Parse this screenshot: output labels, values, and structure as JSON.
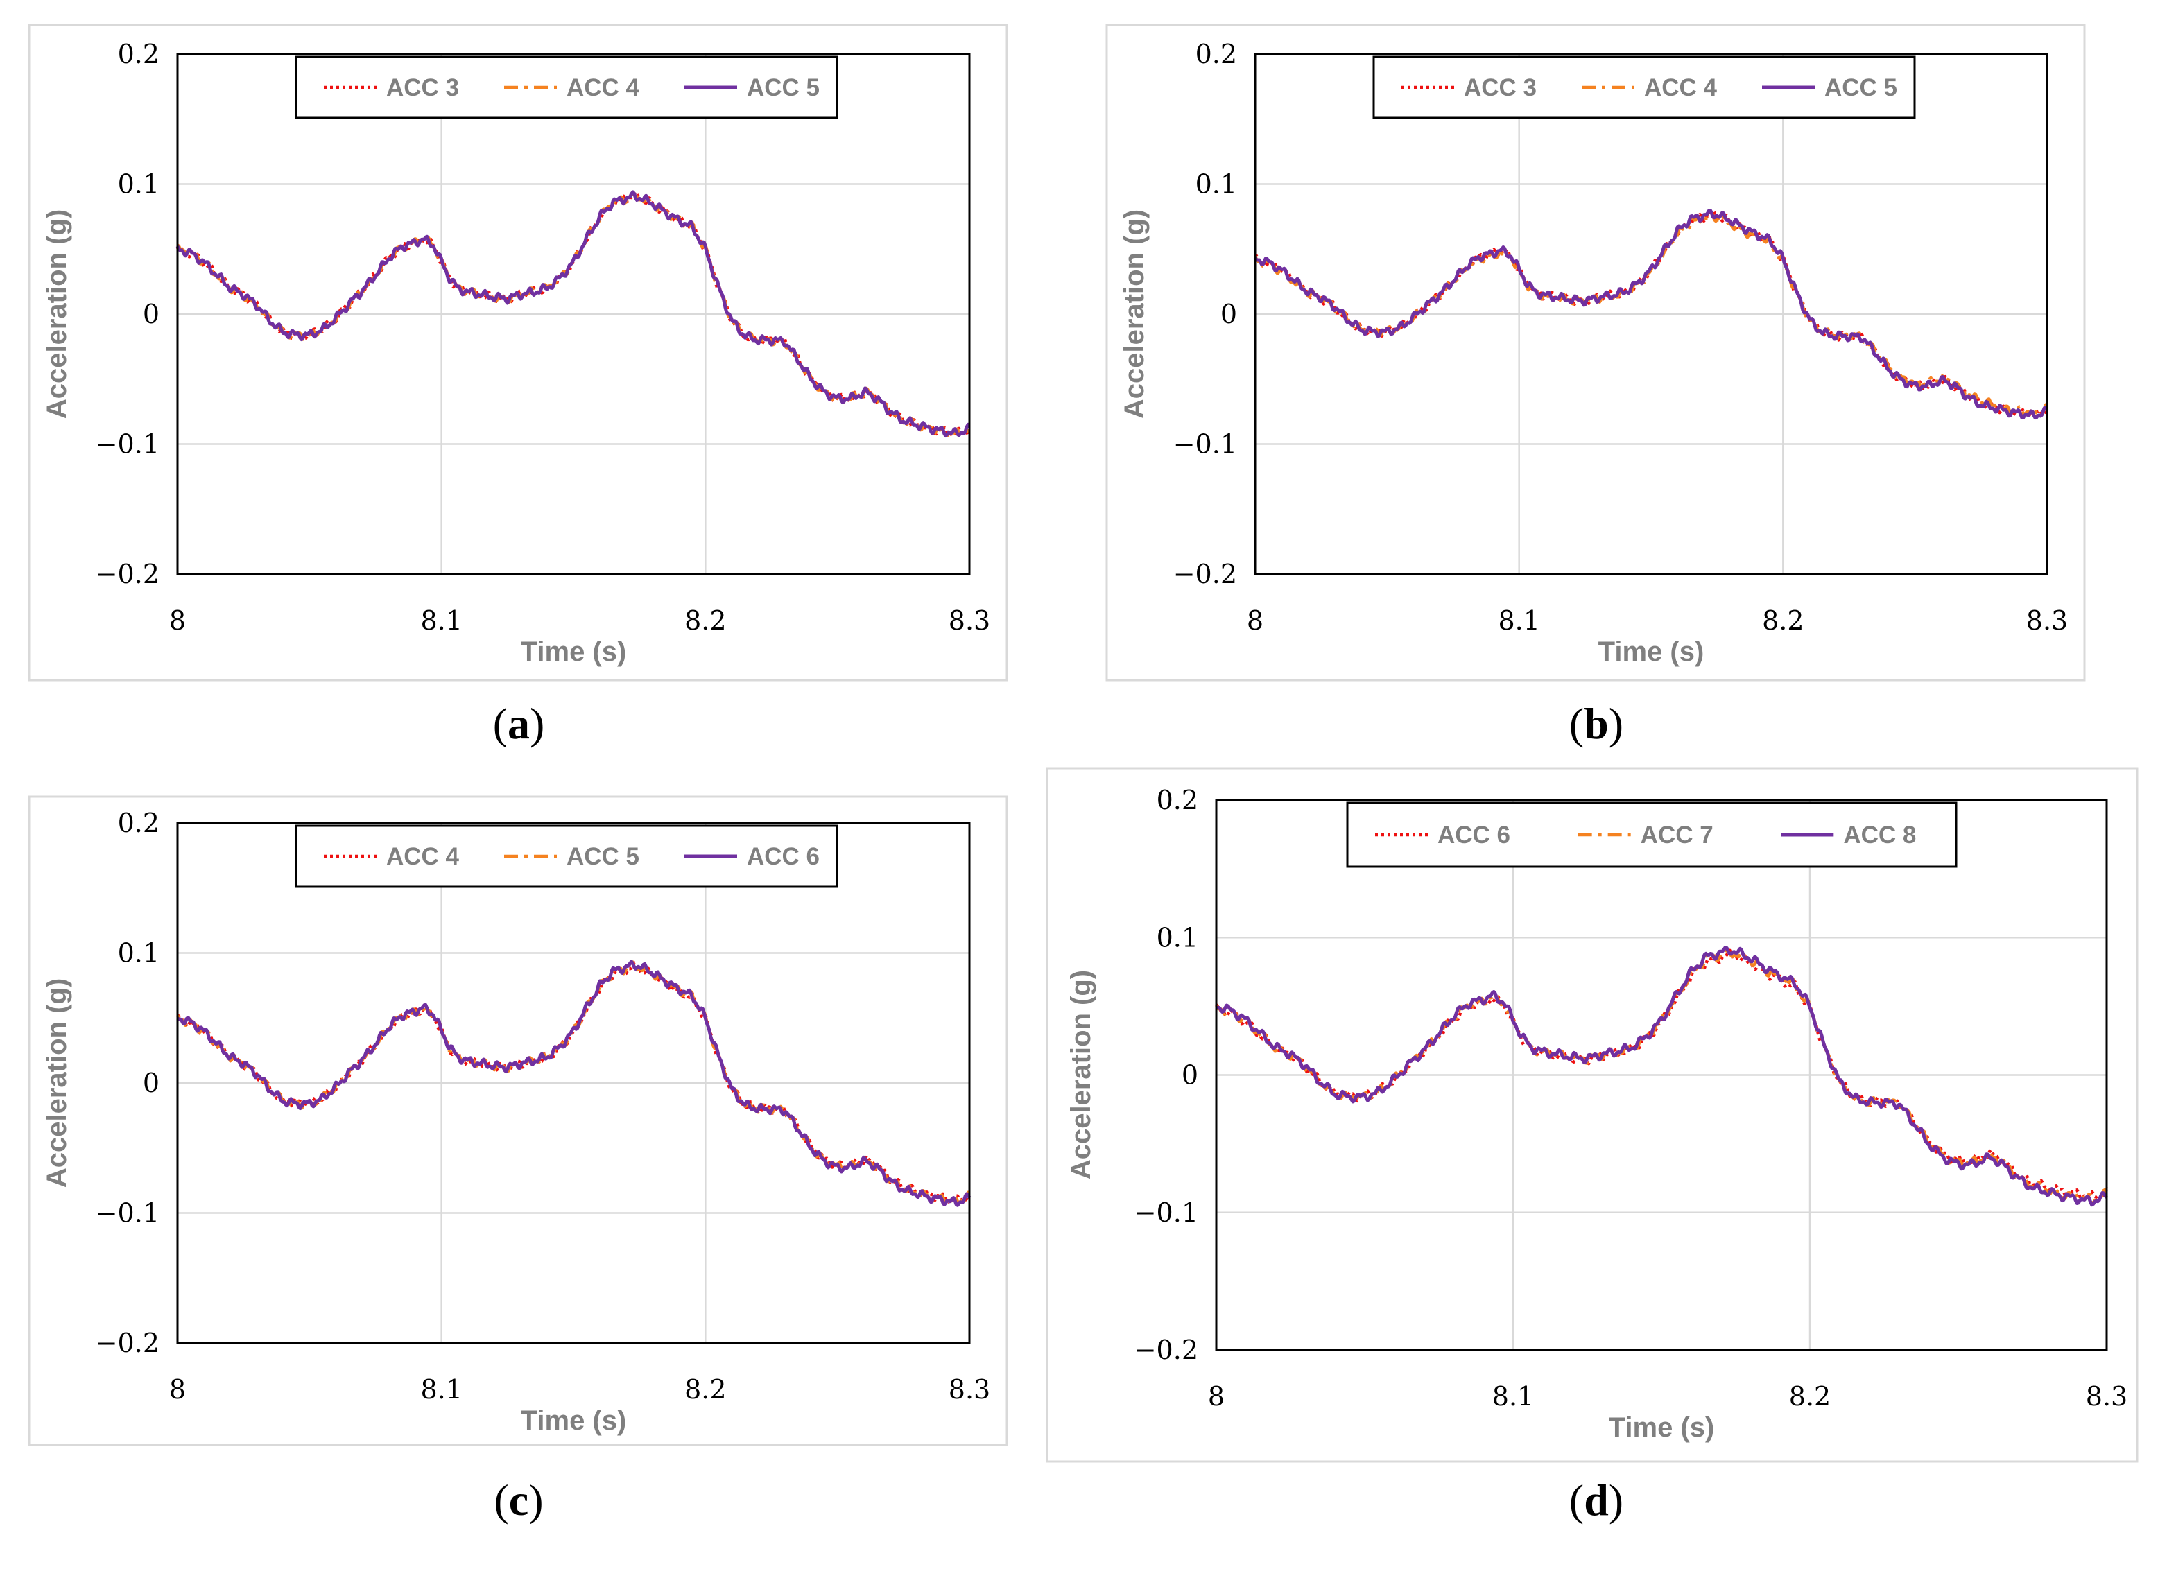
{
  "colors": {
    "series_1": "#ee1111",
    "series_2": "#f58220",
    "series_3": "#7030a0",
    "axis_label": "#7f7f7f",
    "grid": "#d9d9d9"
  },
  "chart_data": [
    {
      "type": "line",
      "caption_prefix": "(",
      "caption_letter": "a",
      "caption_suffix": ")",
      "xlabel": "Time (s)",
      "ylabel": "Acceleration (g)",
      "xlim": [
        8,
        8.3
      ],
      "ylim": [
        -0.2,
        0.2
      ],
      "xticks": [
        "8",
        "8.1",
        "8.2",
        "8.3"
      ],
      "yticks": [
        "0.2",
        "0.1",
        "0",
        "−0.1",
        "−0.2"
      ],
      "series": [
        {
          "name": "ACC 3",
          "style": "dotted",
          "offset": 0.0,
          "scale": 1.0
        },
        {
          "name": "ACC 4",
          "style": "dashdot",
          "offset": 0.0,
          "scale": 1.0
        },
        {
          "name": "ACC 5",
          "style": "solid",
          "offset": 0.0,
          "scale": 1.0
        }
      ]
    },
    {
      "type": "line",
      "caption_prefix": "(",
      "caption_letter": "b",
      "caption_suffix": ")",
      "xlabel": "Time (s)",
      "ylabel": "Acceleration (g)",
      "xlim": [
        8,
        8.3
      ],
      "ylim": [
        -0.2,
        0.2
      ],
      "xticks": [
        "8",
        "8.1",
        "8.2",
        "8.3"
      ],
      "yticks": [
        "0.2",
        "0.1",
        "0",
        "−0.1",
        "−0.2"
      ],
      "series": [
        {
          "name": "ACC 3",
          "style": "dotted",
          "offset": 0.0,
          "scale": 0.84
        },
        {
          "name": "ACC 4",
          "style": "dashdot",
          "offset": 0.0,
          "scale": 0.82
        },
        {
          "name": "ACC 5",
          "style": "solid",
          "offset": 0.0,
          "scale": 0.85
        }
      ]
    },
    {
      "type": "line",
      "caption_prefix": "(",
      "caption_letter": "c",
      "caption_suffix": ")",
      "xlabel": "Time (s)",
      "ylabel": "Acceleration (g)",
      "xlim": [
        8,
        8.3
      ],
      "ylim": [
        -0.2,
        0.2
      ],
      "xticks": [
        "8",
        "8.1",
        "8.2",
        "8.3"
      ],
      "yticks": [
        "0.2",
        "0.1",
        "0",
        "−0.1",
        "−0.2"
      ],
      "series": [
        {
          "name": "ACC 4",
          "style": "dotted",
          "offset": 0.0,
          "scale": 0.98
        },
        {
          "name": "ACC 5",
          "style": "dashdot",
          "offset": 0.0,
          "scale": 0.99
        },
        {
          "name": "ACC 6",
          "style": "solid",
          "offset": 0.0,
          "scale": 1.0
        }
      ]
    },
    {
      "type": "line",
      "caption_prefix": "(",
      "caption_letter": "d",
      "caption_suffix": ")",
      "xlabel": "Time (s)",
      "ylabel": "Acceleration (g)",
      "xlim": [
        8,
        8.3
      ],
      "ylim": [
        -0.2,
        0.2
      ],
      "xticks": [
        "8",
        "8.1",
        "8.2",
        "8.3"
      ],
      "yticks": [
        "0.2",
        "0.1",
        "0",
        "−0.1",
        "−0.2"
      ],
      "series": [
        {
          "name": "ACC 6",
          "style": "dotted",
          "offset": 0.0,
          "scale": 0.96
        },
        {
          "name": "ACC 7",
          "style": "dashdot",
          "offset": 0.0,
          "scale": 0.98
        },
        {
          "name": "ACC 8",
          "style": "solid",
          "offset": 0.0,
          "scale": 1.0
        }
      ]
    }
  ],
  "base_waveform": {
    "t": [
      8.0,
      8.005,
      8.01,
      8.015,
      8.02,
      8.025,
      8.03,
      8.035,
      8.04,
      8.045,
      8.05,
      8.055,
      8.06,
      8.065,
      8.07,
      8.075,
      8.08,
      8.085,
      8.09,
      8.093,
      8.097,
      8.1,
      8.103,
      8.106,
      8.11,
      8.115,
      8.12,
      8.125,
      8.13,
      8.135,
      8.14,
      8.145,
      8.15,
      8.155,
      8.16,
      8.165,
      8.17,
      8.173,
      8.176,
      8.18,
      8.185,
      8.19,
      8.195,
      8.2,
      8.205,
      8.21,
      8.215,
      8.22,
      8.225,
      8.23,
      8.235,
      8.24,
      8.245,
      8.25,
      8.255,
      8.258,
      8.261,
      8.265,
      8.27,
      8.275,
      8.28,
      8.285,
      8.29,
      8.295,
      8.3
    ],
    "v": [
      0.05,
      0.047,
      0.04,
      0.03,
      0.02,
      0.015,
      0.007,
      -0.005,
      -0.014,
      -0.016,
      -0.016,
      -0.012,
      -0.003,
      0.008,
      0.018,
      0.03,
      0.043,
      0.052,
      0.055,
      0.058,
      0.053,
      0.04,
      0.028,
      0.02,
      0.017,
      0.015,
      0.013,
      0.012,
      0.015,
      0.017,
      0.02,
      0.028,
      0.04,
      0.058,
      0.075,
      0.086,
      0.089,
      0.091,
      0.089,
      0.085,
      0.078,
      0.072,
      0.067,
      0.05,
      0.02,
      -0.005,
      -0.017,
      -0.02,
      -0.02,
      -0.021,
      -0.035,
      -0.05,
      -0.06,
      -0.065,
      -0.065,
      -0.062,
      -0.06,
      -0.065,
      -0.075,
      -0.082,
      -0.085,
      -0.088,
      -0.09,
      -0.092,
      -0.088
    ]
  }
}
